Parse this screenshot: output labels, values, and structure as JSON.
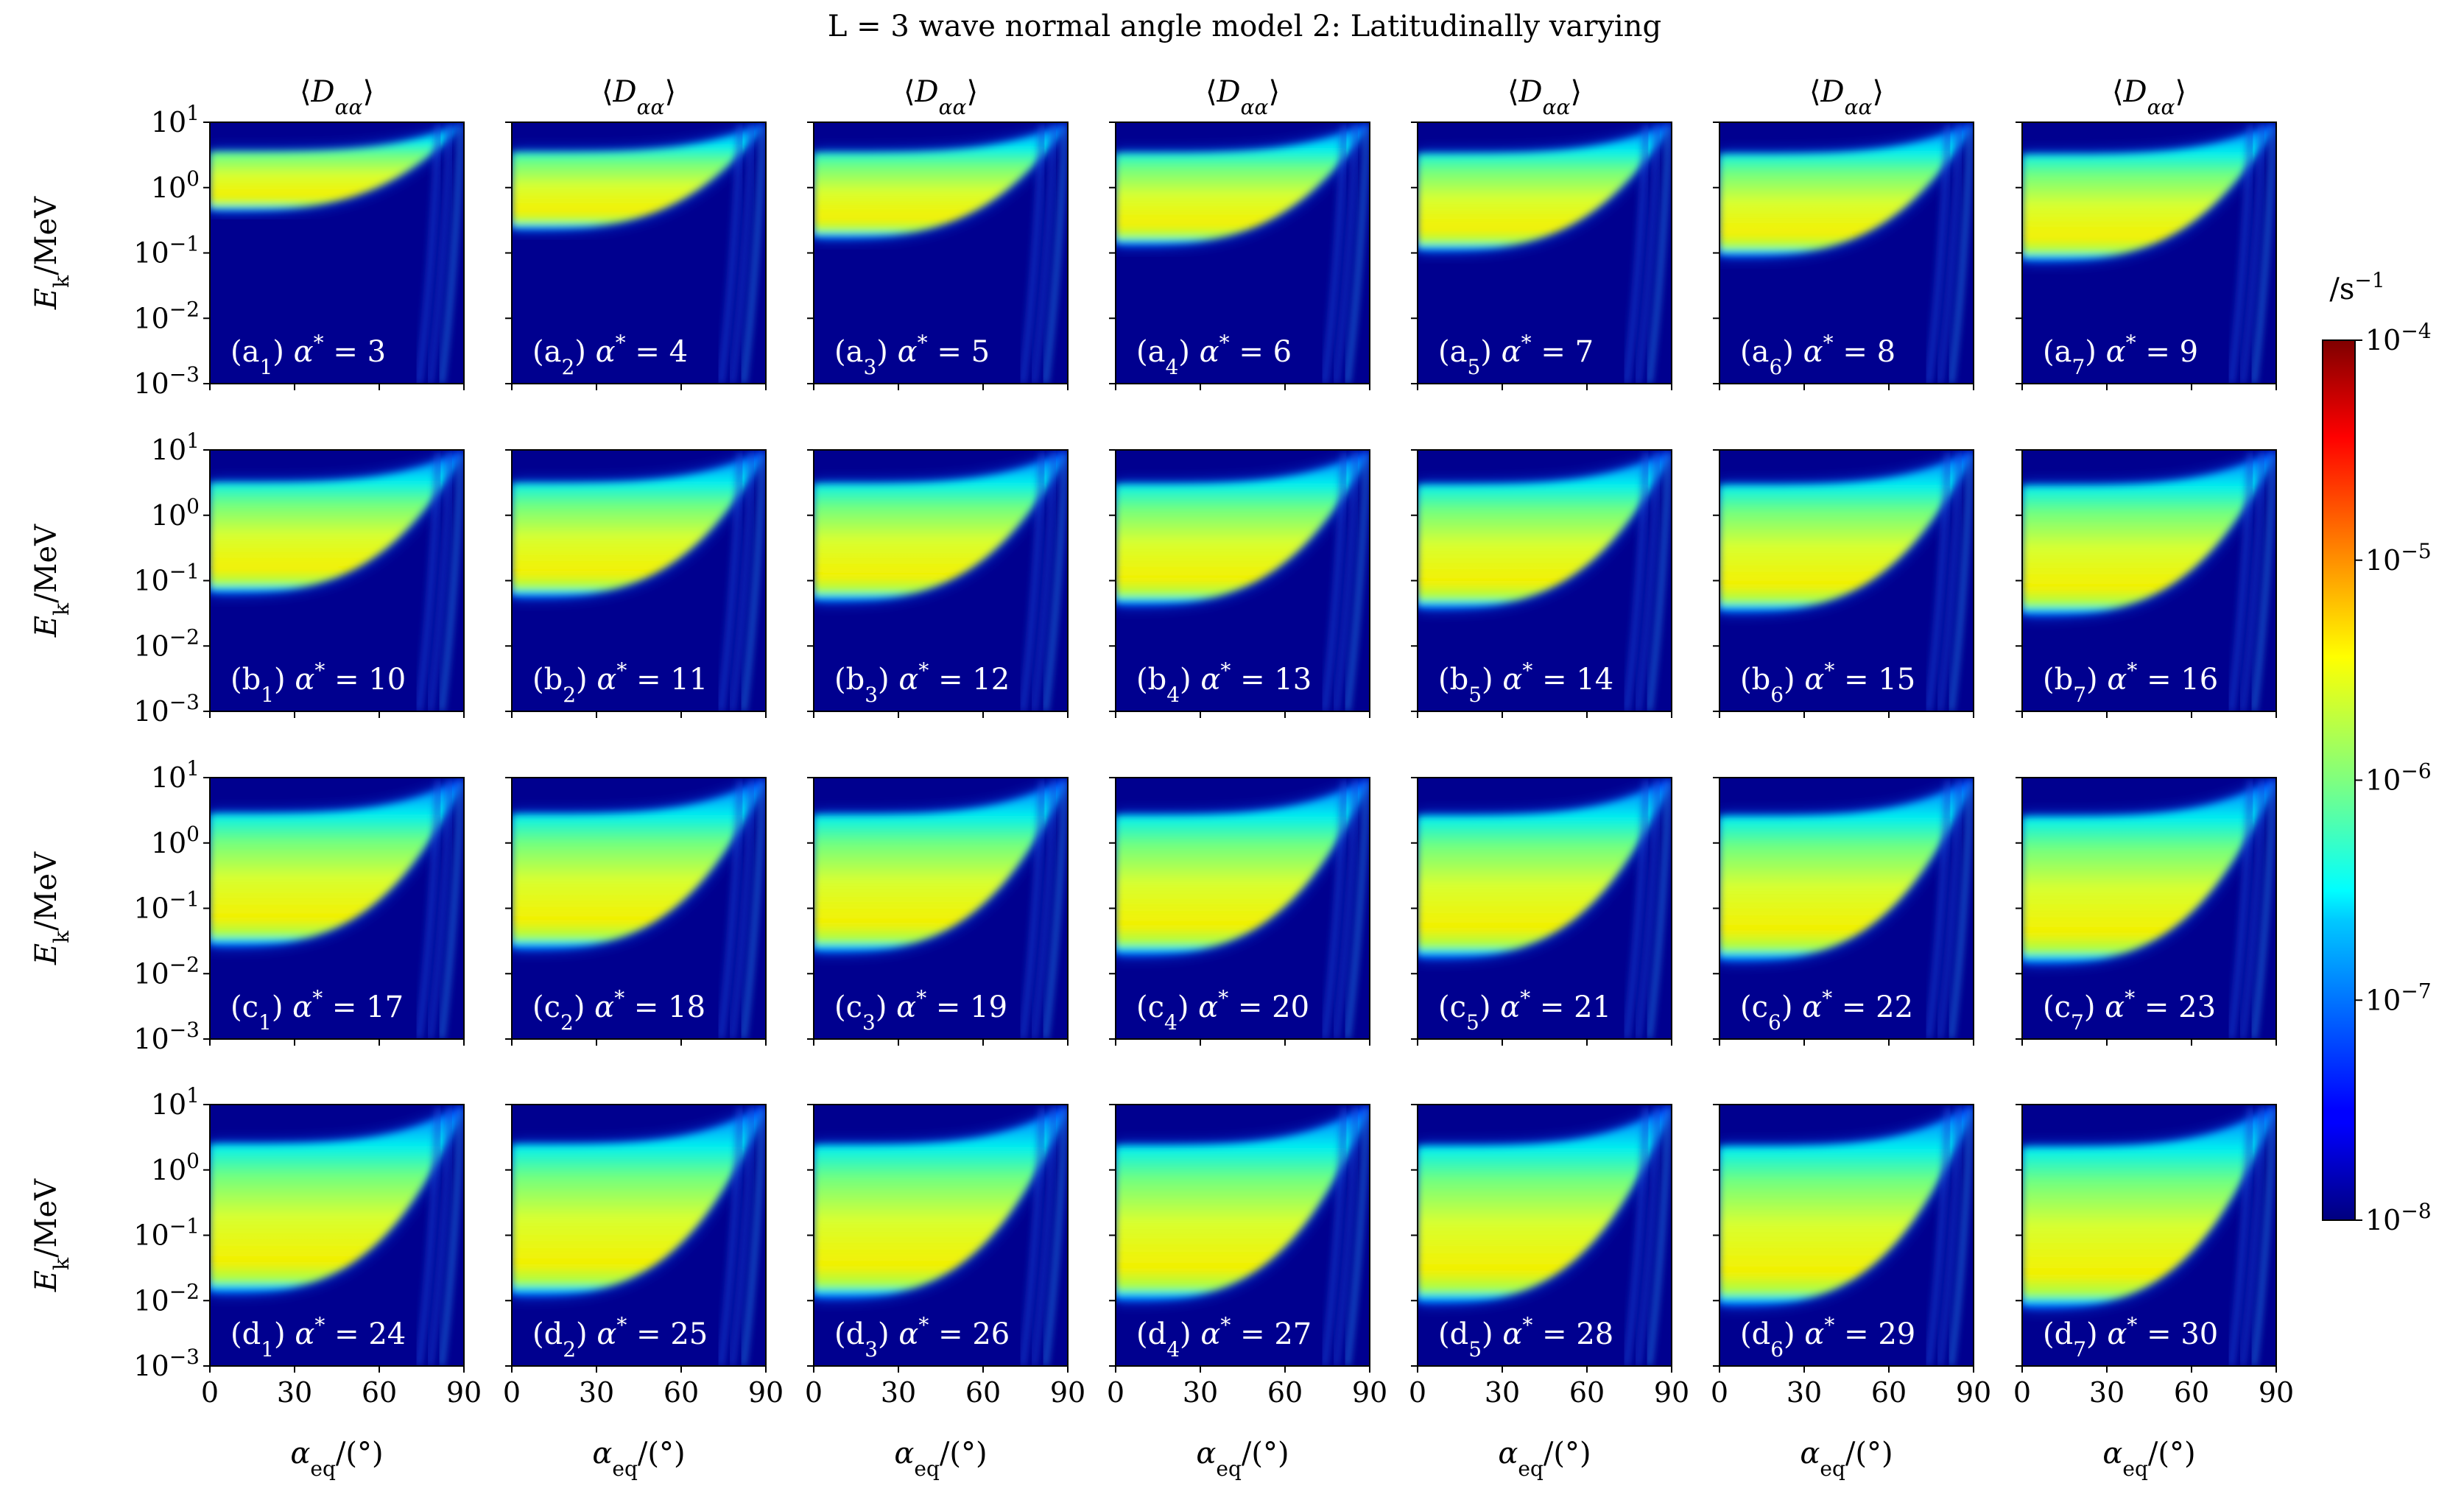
{
  "figure": {
    "title": "L = 3 wave normal angle model 2: Latitudinally varying"
  },
  "chart_data": {
    "type": "heatmap",
    "title": "L = 3 wave normal angle model 2: Latitudinally varying",
    "column_title": "⟨D_αα⟩",
    "xlabel": "α_eq/(°)",
    "ylabel": "E_k/MeV",
    "xlim": [
      0,
      90
    ],
    "xticks": [
      "0",
      "30",
      "60",
      "90"
    ],
    "ylim": [
      0.001,
      10
    ],
    "yscale": "log",
    "yticks": [
      "10^1",
      "10^0",
      "10^-1",
      "10^-2",
      "10^-3"
    ],
    "colorbar": {
      "label": "/s^-1",
      "scale": "log",
      "range": [
        1e-08,
        0.0001
      ],
      "ticks": [
        "10^-4",
        "10^-5",
        "10^-6",
        "10^-7",
        "10^-8"
      ],
      "colormap": "jet"
    },
    "rows": [
      {
        "row": "a",
        "panels": [
          {
            "label": "(a1) α* = 3",
            "alpha_star": 3
          },
          {
            "label": "(a2) α* = 4",
            "alpha_star": 4
          },
          {
            "label": "(a3) α* = 5",
            "alpha_star": 5
          },
          {
            "label": "(a4) α* = 6",
            "alpha_star": 6
          },
          {
            "label": "(a5) α* = 7",
            "alpha_star": 7
          },
          {
            "label": "(a6) α* = 8",
            "alpha_star": 8
          },
          {
            "label": "(a7) α* = 9",
            "alpha_star": 9
          }
        ]
      },
      {
        "row": "b",
        "panels": [
          {
            "label": "(b1) α* = 10",
            "alpha_star": 10
          },
          {
            "label": "(b2) α* = 11",
            "alpha_star": 11
          },
          {
            "label": "(b3) α* = 12",
            "alpha_star": 12
          },
          {
            "label": "(b4) α* = 13",
            "alpha_star": 13
          },
          {
            "label": "(b5) α* = 14",
            "alpha_star": 14
          },
          {
            "label": "(b6) α* = 15",
            "alpha_star": 15
          },
          {
            "label": "(b7) α* = 16",
            "alpha_star": 16
          }
        ]
      },
      {
        "row": "c",
        "panels": [
          {
            "label": "(c1) α* = 17",
            "alpha_star": 17
          },
          {
            "label": "(c2) α* = 18",
            "alpha_star": 18
          },
          {
            "label": "(c3) α* = 19",
            "alpha_star": 19
          },
          {
            "label": "(c4) α* = 20",
            "alpha_star": 20
          },
          {
            "label": "(c5) α* = 21",
            "alpha_star": 21
          },
          {
            "label": "(c6) α* = 22",
            "alpha_star": 22
          },
          {
            "label": "(c7) α* = 23",
            "alpha_star": 23
          }
        ]
      },
      {
        "row": "d",
        "panels": [
          {
            "label": "(d1) α* = 24",
            "alpha_star": 24
          },
          {
            "label": "(d2) α* = 25",
            "alpha_star": 25
          },
          {
            "label": "(d3) α* = 26",
            "alpha_star": 26
          },
          {
            "label": "(d4) α* = 27",
            "alpha_star": 27
          },
          {
            "label": "(d5) α* = 28",
            "alpha_star": 28
          },
          {
            "label": "(d6) α* = 29",
            "alpha_star": 29
          },
          {
            "label": "(d7) α* = 30",
            "alpha_star": 30
          }
        ]
      }
    ]
  }
}
